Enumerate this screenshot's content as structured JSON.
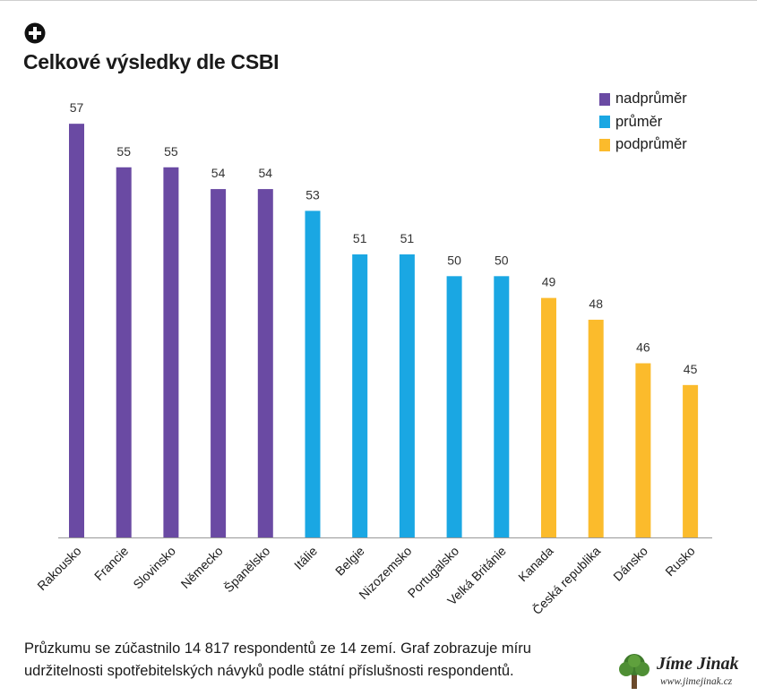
{
  "header": {
    "icon": "plus-circle-icon"
  },
  "chart_data": {
    "type": "bar",
    "title": "Celkové výsledky dle CSBI",
    "categories": [
      "Rakousko",
      "Francie",
      "Slovinsko",
      "Německo",
      "Španělsko",
      "Itálie",
      "Belgie",
      "Nizozemsko",
      "Portugalsko",
      "Velká Británie",
      "Kanada",
      "Česká republika",
      "Dánsko",
      "Rusko"
    ],
    "values": [
      57,
      55,
      55,
      54,
      54,
      53,
      51,
      51,
      50,
      50,
      49,
      48,
      46,
      45
    ],
    "groups": [
      "nadprůměr",
      "nadprůměr",
      "nadprůměr",
      "nadprůměr",
      "nadprůměr",
      "průměr",
      "průměr",
      "průměr",
      "průměr",
      "průměr",
      "podprůměr",
      "podprůměr",
      "podprůměr",
      "podprůměr"
    ],
    "ylim": [
      38,
      57.5
    ],
    "grid": false,
    "legend": {
      "placement": "top-right",
      "entries": [
        {
          "name": "nadprůměr",
          "color": "#6a4aa3"
        },
        {
          "name": "průměr",
          "color": "#1aa7e3"
        },
        {
          "name": "podprůměr",
          "color": "#fbbb2c"
        }
      ]
    }
  },
  "footnote": {
    "line1": "Průzkumu se zúčastnilo 14 817 respondentů ze 14 zemí. Graf zobrazuje míru",
    "line2": "udržitelnosti spotřebitelských návyků podle státní příslušnosti respondentů."
  },
  "watermark": {
    "name": "Jíme Jinak",
    "url": "www.jimejinak.cz"
  }
}
